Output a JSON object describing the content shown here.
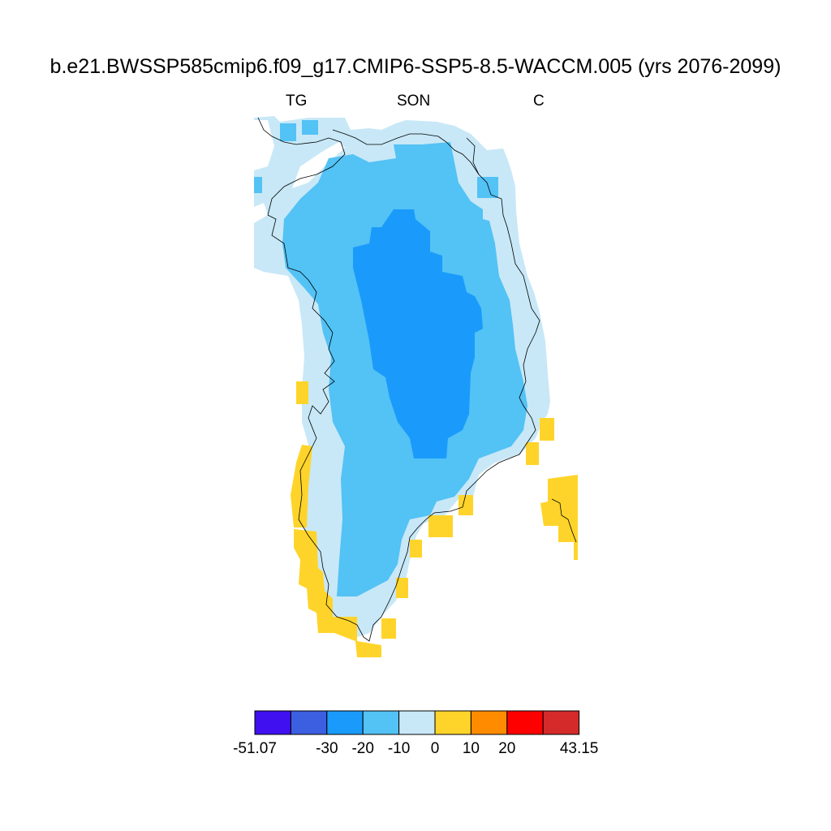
{
  "title": "b.e21.BWSSP585cmip6.f09_g17.CMIP6-SSP5-8.5-WACCM.005 (yrs 2076-2099)",
  "subtitle": {
    "left": "TG",
    "center": "SON",
    "right": "C"
  },
  "colorbar": {
    "colors": [
      "#4010f0",
      "#3c5ee0",
      "#1a9bfb",
      "#53c2f5",
      "#c8e8f7",
      "#ffd42a",
      "#ff8c00",
      "#ff0000",
      "#d42a2a"
    ],
    "tick_labels": [
      "-51.07",
      "-30",
      "-20",
      "-10",
      "0",
      "10",
      "20",
      "43.15"
    ]
  },
  "map": {
    "region": "Greenland",
    "categories": [
      "-20 to -30",
      "-10 to -20",
      "0 to -10",
      "0 to 10"
    ],
    "colors": {
      "lt_m20": "#1a9bfb",
      "m20_m10": "#53c2f5",
      "m10_0": "#c8e8f7",
      "p0_p10": "#ffd42a"
    }
  }
}
